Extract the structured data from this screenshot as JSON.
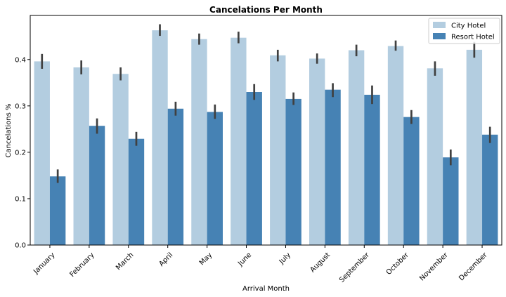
{
  "chart_data": {
    "type": "bar",
    "title": "Cancelations Per Month",
    "xlabel": "Arrival Month",
    "ylabel": "Cancelations %",
    "categories": [
      "January",
      "February",
      "March",
      "April",
      "May",
      "June",
      "July",
      "August",
      "September",
      "October",
      "November",
      "December"
    ],
    "series": [
      {
        "name": "City Hotel",
        "color": "#b3cde0",
        "values": [
          0.396,
          0.383,
          0.369,
          0.463,
          0.444,
          0.447,
          0.409,
          0.402,
          0.42,
          0.429,
          0.381,
          0.421
        ],
        "error_low": [
          0.38,
          0.368,
          0.355,
          0.451,
          0.432,
          0.435,
          0.396,
          0.391,
          0.407,
          0.419,
          0.365,
          0.404
        ],
        "error_high": [
          0.412,
          0.398,
          0.383,
          0.476,
          0.456,
          0.46,
          0.421,
          0.413,
          0.432,
          0.441,
          0.396,
          0.438
        ]
      },
      {
        "name": "Resort Hotel",
        "color": "#4682b4",
        "values": [
          0.148,
          0.257,
          0.229,
          0.294,
          0.287,
          0.33,
          0.315,
          0.335,
          0.324,
          0.276,
          0.189,
          0.238
        ],
        "error_low": [
          0.134,
          0.24,
          0.214,
          0.279,
          0.272,
          0.313,
          0.302,
          0.319,
          0.304,
          0.261,
          0.172,
          0.22
        ],
        "error_high": [
          0.163,
          0.273,
          0.244,
          0.309,
          0.303,
          0.347,
          0.329,
          0.349,
          0.344,
          0.291,
          0.206,
          0.255
        ]
      }
    ],
    "ylim": [
      0,
      0.495
    ],
    "yticks": [
      "0.0",
      "0.1",
      "0.2",
      "0.3",
      "0.4"
    ],
    "error_bar_color": "#404040",
    "grid": false,
    "legend_placement": "top-right"
  }
}
